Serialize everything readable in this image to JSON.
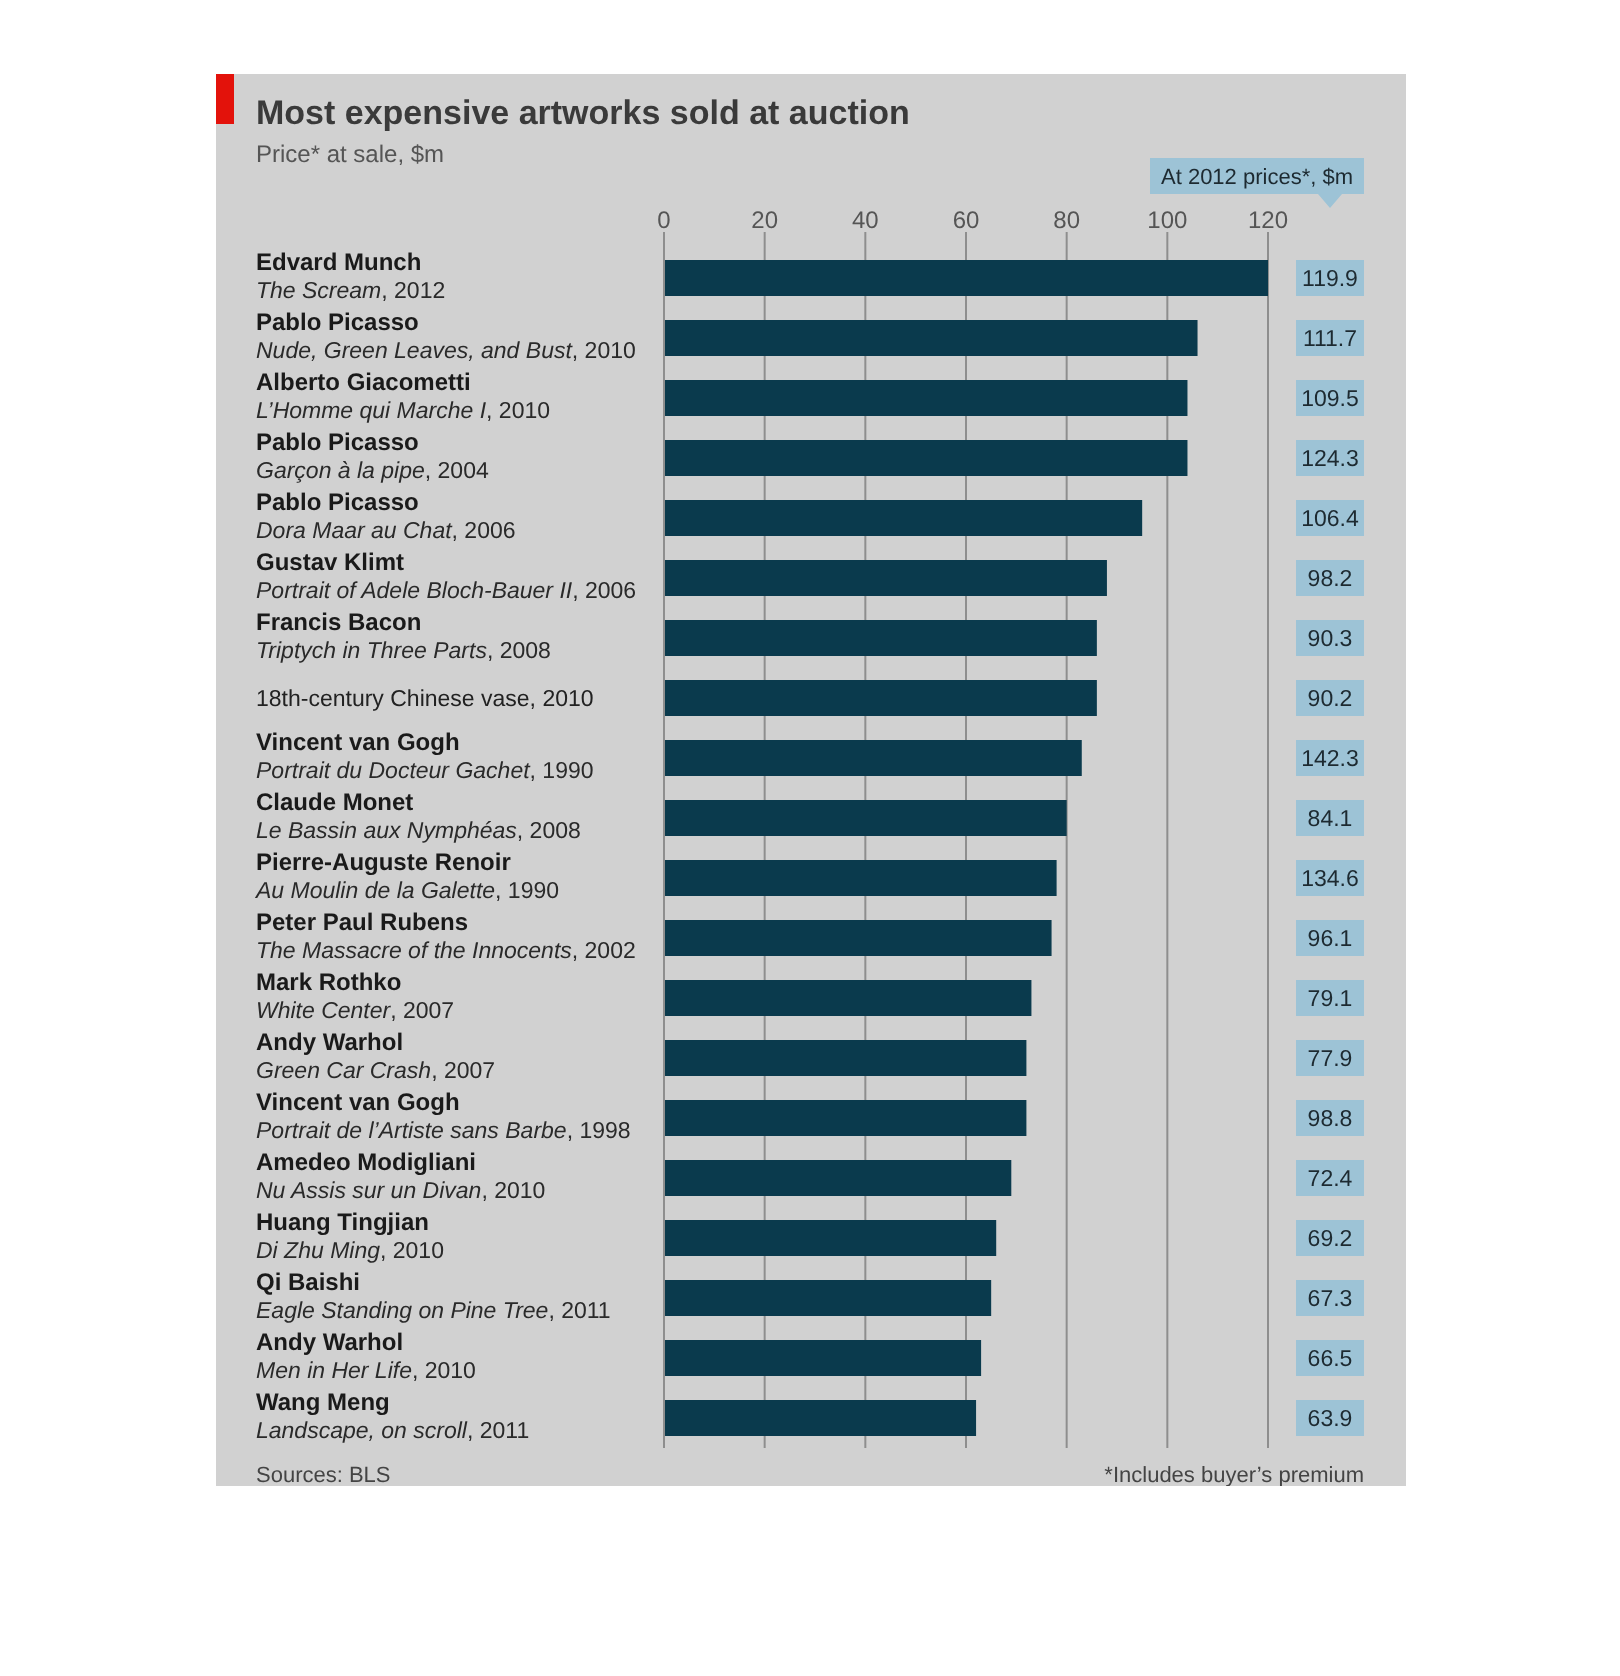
{
  "chart_data": [
    {
      "type": "bar",
      "orientation": "horizontal",
      "title": "Most expensive artworks sold at auction",
      "subtitle": "Price* at sale, $m",
      "categories": [
        "Edvard Munch\nThe Scream, 2012",
        "Pablo Picasso\nNude, Green Leaves, and Bust, 2010",
        "Alberto Giacometti\nL’Homme qui Marche I, 2010",
        "Pablo Picasso\nGarçon à la pipe, 2004",
        "Pablo Picasso\nDora Maar au Chat, 2006",
        "Gustav Klimt\nPortrait of Adele Bloch-Bauer II, 2006",
        "Francis Bacon\nTriptych in Three Parts, 2008",
        "18th-century Chinese vase, 2010",
        "Vincent van Gogh\nPortrait du Docteur Gachet, 1990",
        "Claude Monet\nLe Bassin aux Nymphéas, 2008",
        "Pierre-Auguste Renoir\nAu Moulin de la Galette, 1990",
        "Peter Paul Rubens\nThe Massacre of the Innocents, 2002",
        "Mark Rothko\nWhite Center, 2007",
        "Andy Warhol\nGreen Car Crash, 2007",
        "Vincent van Gogh\nPortrait de l’Artiste sans Barbe, 1998",
        "Amedeo Modigliani\nNu Assis sur un Divan, 2010",
        "Huang Tingjian\nDi Zhu Ming, 2010",
        "Qi Baishi\nEagle Standing on Pine Tree, 2011",
        "Andy Warhol\nMen in Her Life, 2010",
        "Wang Meng\nLandscape, on scroll, 2011"
      ],
      "color": "#0a3a4d",
      "values": [
        120,
        106,
        104,
        104,
        95,
        88,
        86,
        86,
        83,
        80,
        78,
        77,
        73,
        72,
        72,
        69,
        66,
        65,
        63,
        62
      ],
      "xlim": [
        0,
        120
      ],
      "xticks": [
        0,
        20,
        40,
        60,
        80,
        100,
        120
      ],
      "grid": "x",
      "annotations": [
        "Sources: BLS",
        "*Includes buyer’s premium"
      ]
    },
    {
      "type": "other",
      "title": "At 2012 prices*, $m",
      "color": "#9dc3d6",
      "values": [
        119.9,
        111.7,
        109.5,
        124.3,
        106.4,
        98.2,
        90.3,
        90.2,
        142.3,
        84.1,
        134.6,
        96.1,
        79.1,
        77.9,
        98.8,
        72.4,
        69.2,
        67.3,
        66.5,
        63.9
      ],
      "data_labels": true
    }
  ]
}
